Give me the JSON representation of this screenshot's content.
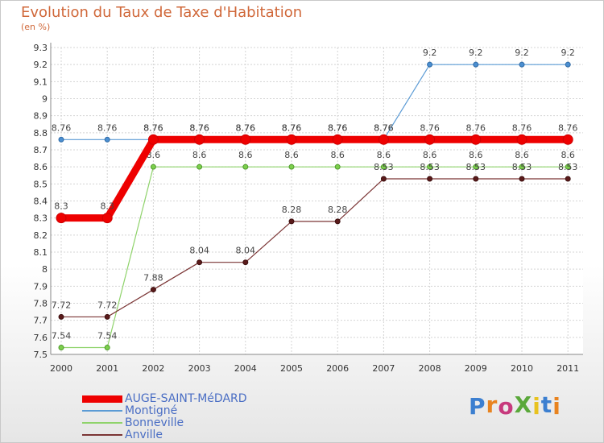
{
  "chart_data": {
    "type": "line",
    "title": "Evolution du Taux de Taxe d'Habitation",
    "subtitle": "(en %)",
    "x": [
      "2000",
      "2001",
      "2002",
      "2003",
      "2004",
      "2005",
      "2006",
      "2007",
      "2008",
      "2009",
      "2010",
      "2011"
    ],
    "ylim": [
      7.5,
      9.3
    ],
    "yticks": [
      "7.5",
      "7.6",
      "7.7",
      "7.8",
      "7.9",
      "8",
      "8.1",
      "8.2",
      "8.3",
      "8.4",
      "8.5",
      "8.6",
      "8.7",
      "8.8",
      "8.9",
      "9",
      "9.1",
      "9.2",
      "9.3"
    ],
    "grid": true,
    "series": [
      {
        "name": "Montigné",
        "color": "#5b9bd5",
        "values": [
          8.76,
          8.76,
          8.76,
          8.76,
          8.76,
          8.76,
          8.76,
          8.76,
          9.2,
          9.2,
          9.2,
          9.2
        ],
        "labels": [
          "8.76",
          "8.76",
          "8.76",
          "8.76",
          "8.76",
          "8.76",
          "8.76",
          "8.76",
          "9.2",
          "9.2",
          "9.2",
          "9.2"
        ]
      },
      {
        "name": "Bonneville",
        "color": "#8fd36b",
        "values": [
          7.54,
          7.54,
          8.6,
          8.6,
          8.6,
          8.6,
          8.6,
          8.6,
          8.6,
          8.6,
          8.6,
          8.6
        ],
        "labels": [
          "7.54",
          "7.54",
          "8.6",
          "8.6",
          "8.6",
          "8.6",
          "8.6",
          "8.6",
          "8.6",
          "8.6",
          "8.6",
          "8.6"
        ]
      },
      {
        "name": "Anville",
        "color": "#7b3535",
        "values": [
          7.72,
          7.72,
          7.88,
          8.04,
          8.04,
          8.28,
          8.28,
          8.53,
          8.53,
          8.53,
          8.53,
          8.53
        ],
        "labels": [
          "7.72",
          "7.72",
          "7.88",
          "8.04",
          "8.04",
          "8.28",
          "8.28",
          "8.53",
          "8.53",
          "8.53",
          "8.53",
          "8.53"
        ]
      },
      {
        "name": "AUGE-SAINT-MéDARD",
        "color": "#ee0000",
        "values": [
          8.3,
          8.3,
          8.76,
          8.76,
          8.76,
          8.76,
          8.76,
          8.76,
          8.76,
          8.76,
          8.76,
          8.76
        ],
        "labels": [
          "8.3",
          "8.3",
          "8.76",
          "8.76",
          "8.76",
          "8.76",
          "8.76",
          "8.76",
          "8.76",
          "8.76",
          "8.76",
          "8.76"
        ]
      }
    ],
    "legend": [
      "AUGE-SAINT-MéDARD",
      "Montigné",
      "Bonneville",
      "Anville"
    ]
  },
  "brand": {
    "logo_text": "ProXiti",
    "letter_colors": [
      "#3c7fd0",
      "#e8831f",
      "#c73a7d",
      "#5aa83a",
      "#e8c21f",
      "#3c7fd0",
      "#e8831f"
    ]
  }
}
